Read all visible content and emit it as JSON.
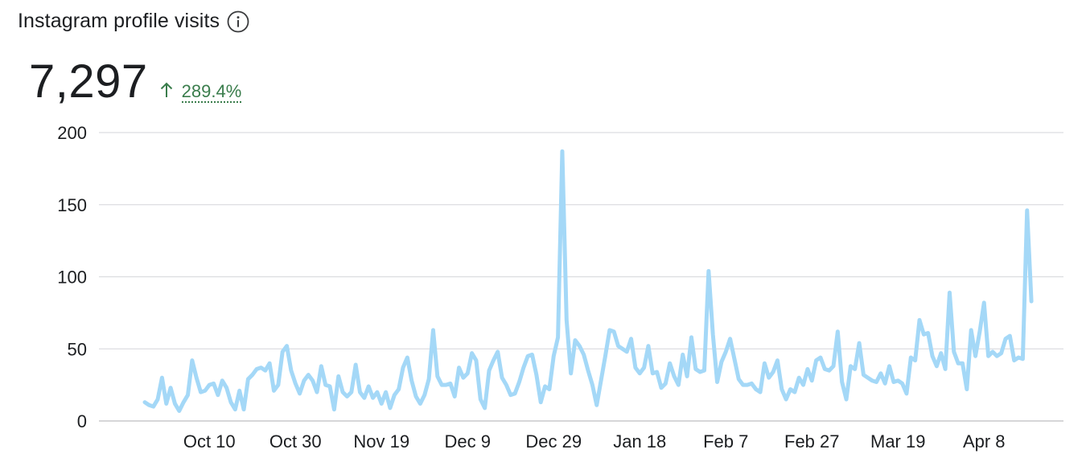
{
  "header": {
    "title": "Instagram profile visits",
    "info_icon": "info-icon"
  },
  "metric": {
    "value": "7,297",
    "change": "289.4%",
    "trend_icon": "arrow-up-icon",
    "trend_color": "#3a7d4c"
  },
  "chart_data": {
    "type": "line",
    "title": "",
    "xlabel": "",
    "ylabel": "",
    "ylim": [
      0,
      200
    ],
    "yticks": [
      "0",
      "50",
      "100",
      "150",
      "200"
    ],
    "grid": true,
    "line_color": "#a4d8f7",
    "xtick_labels": [
      {
        "label": "Oct 10",
        "day": 15
      },
      {
        "label": "Oct 30",
        "day": 35
      },
      {
        "label": "Nov 19",
        "day": 55
      },
      {
        "label": "Dec 9",
        "day": 75
      },
      {
        "label": "Dec 29",
        "day": 95
      },
      {
        "label": "Jan 18",
        "day": 115
      },
      {
        "label": "Feb 7",
        "day": 135
      },
      {
        "label": "Feb 27",
        "day": 155
      },
      {
        "label": "Mar 19",
        "day": 175
      },
      {
        "label": "Apr 8",
        "day": 195
      }
    ],
    "series": [
      {
        "values": [
          13,
          11,
          10,
          15,
          30,
          12,
          23,
          12,
          7,
          13,
          18,
          42,
          30,
          20,
          21,
          25,
          26,
          18,
          28,
          23,
          13,
          8,
          21,
          8,
          29,
          32,
          36,
          37,
          35,
          40,
          21,
          25,
          48,
          52,
          35,
          26,
          19,
          28,
          32,
          28,
          20,
          38,
          25,
          24,
          8,
          31,
          20,
          17,
          20,
          39,
          20,
          16,
          24,
          16,
          20,
          12,
          20,
          9,
          18,
          22,
          37,
          44,
          28,
          17,
          12,
          18,
          29,
          63,
          31,
          25,
          25,
          26,
          17,
          37,
          30,
          33,
          47,
          42,
          15,
          9,
          35,
          42,
          48,
          30,
          25,
          18,
          19,
          27,
          37,
          45,
          46,
          32,
          13,
          24,
          22,
          45,
          58,
          187,
          70,
          33,
          56,
          52,
          46,
          35,
          25,
          11,
          28,
          45,
          63,
          62,
          52,
          50,
          48,
          57,
          37,
          33,
          37,
          52,
          33,
          34,
          23,
          26,
          40,
          31,
          25,
          46,
          31,
          58,
          36,
          34,
          35,
          104,
          60,
          27,
          41,
          48,
          57,
          43,
          29,
          25,
          25,
          26,
          22,
          20,
          40,
          30,
          34,
          42,
          22,
          15,
          22,
          20,
          30,
          25,
          36,
          28,
          42,
          44,
          36,
          35,
          38,
          62,
          27,
          15,
          38,
          36,
          54,
          32,
          30,
          28,
          27,
          33,
          26,
          38,
          27,
          28,
          26,
          19,
          44,
          42,
          70,
          60,
          61,
          45,
          38,
          47,
          36,
          89,
          48,
          40,
          40,
          22,
          63,
          45,
          62,
          82,
          45,
          48,
          45,
          47,
          57,
          59,
          42,
          44,
          43,
          146,
          83
        ]
      }
    ]
  }
}
